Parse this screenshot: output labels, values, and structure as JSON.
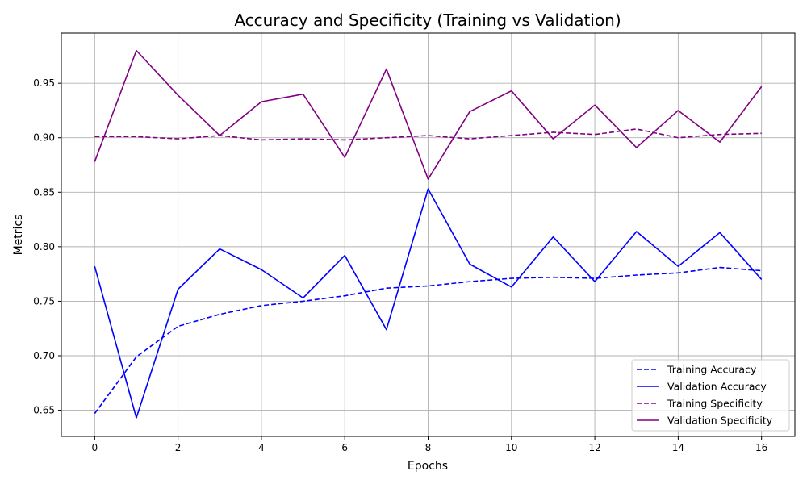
{
  "chart_data": {
    "type": "line",
    "title": "Accuracy and Specificity (Training vs Validation)",
    "xlabel": "Epochs",
    "ylabel": "Metrics",
    "xlim": [
      -0.8,
      16.8
    ],
    "ylim": [
      0.626,
      0.996
    ],
    "xticks": [
      0,
      2,
      4,
      6,
      8,
      10,
      12,
      14,
      16
    ],
    "yticks": [
      0.65,
      0.7,
      0.75,
      0.8,
      0.85,
      0.9,
      0.95
    ],
    "xtick_labels": [
      "0",
      "2",
      "4",
      "6",
      "8",
      "10",
      "12",
      "14",
      "16"
    ],
    "ytick_labels": [
      "0.65",
      "0.70",
      "0.75",
      "0.80",
      "0.85",
      "0.90",
      "0.95"
    ],
    "grid": true,
    "legend_position": "lower-right",
    "x": [
      0,
      1,
      2,
      3,
      4,
      5,
      6,
      7,
      8,
      9,
      10,
      11,
      12,
      13,
      14,
      15,
      16
    ],
    "series": [
      {
        "name": "Training Accuracy",
        "color": "#0000ff",
        "style": "dashed",
        "values": [
          0.647,
          0.699,
          0.727,
          0.738,
          0.746,
          0.75,
          0.755,
          0.762,
          0.764,
          0.768,
          0.771,
          0.772,
          0.771,
          0.774,
          0.776,
          0.781,
          0.778
        ]
      },
      {
        "name": "Validation Accuracy",
        "color": "#0000ff",
        "style": "solid",
        "values": [
          0.782,
          0.643,
          0.761,
          0.798,
          0.779,
          0.753,
          0.792,
          0.724,
          0.853,
          0.784,
          0.763,
          0.809,
          0.768,
          0.814,
          0.782,
          0.813,
          0.77
        ]
      },
      {
        "name": "Training Specificity",
        "color": "#800080",
        "style": "dashed",
        "values": [
          0.901,
          0.901,
          0.899,
          0.902,
          0.898,
          0.899,
          0.898,
          0.9,
          0.902,
          0.899,
          0.902,
          0.905,
          0.903,
          0.908,
          0.9,
          0.903,
          0.904
        ]
      },
      {
        "name": "Validation Specificity",
        "color": "#800080",
        "style": "solid",
        "values": [
          0.878,
          0.98,
          0.939,
          0.902,
          0.933,
          0.94,
          0.882,
          0.963,
          0.862,
          0.924,
          0.943,
          0.899,
          0.93,
          0.891,
          0.925,
          0.896,
          0.947
        ]
      }
    ]
  }
}
